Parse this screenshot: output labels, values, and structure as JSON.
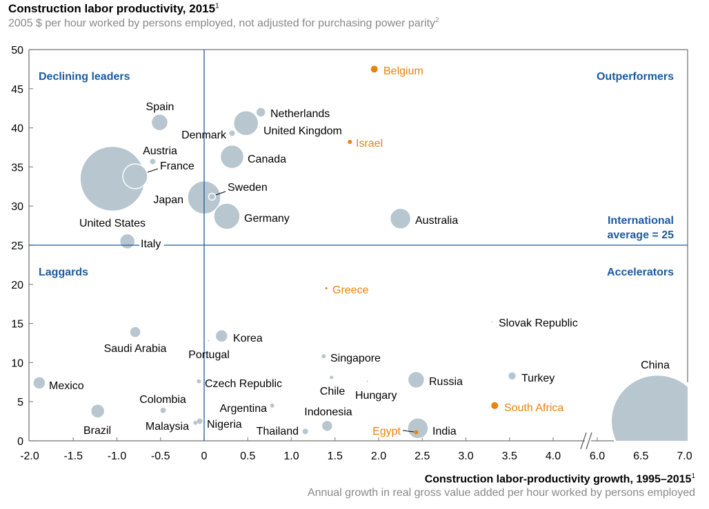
{
  "chart_data": {
    "type": "scatter",
    "title": "Construction labor productivity, 2015",
    "title_sup": "1",
    "subtitle": "2005 $ per hour worked by persons employed, not adjusted for purchasing power parity",
    "subtitle_sup": "2",
    "xlabel": "Construction labor-productivity growth, 1995–2015",
    "xlabel_sup": "1",
    "xsublabel": "Annual growth in real gross value added per hour worked by persons employed",
    "xlim": [
      -2.0,
      7.0
    ],
    "x_axis_break": [
      4.0,
      6.0
    ],
    "ylim": [
      0,
      50
    ],
    "xticks": [
      "-2.0",
      "-1.5",
      "-1.0",
      "-0.5",
      "0",
      "0.5",
      "1.0",
      "1.5",
      "2.0",
      "2.5",
      "3.0",
      "3.5",
      "4.0",
      "6.0",
      "6.5",
      "7.0"
    ],
    "yticks": [
      "0",
      "5",
      "10",
      "15",
      "20",
      "25",
      "30",
      "35",
      "40",
      "45",
      "50"
    ],
    "reference_lines": {
      "x": 0,
      "y": 25
    },
    "quadrants": {
      "top_left": "Declining leaders",
      "top_right": "Outperformers",
      "bottom_left": "Laggards",
      "bottom_right": "Accelerators",
      "average_line1": "International",
      "average_line2": "average = 25"
    },
    "colors": {
      "bubble": "#b7c6cf",
      "highlight": "#e8820c",
      "accent": "#1b5a9e",
      "axis": "#888888"
    },
    "points": [
      {
        "name": "United States",
        "x": -1.05,
        "y": 33.5,
        "size": 47,
        "highlight": false
      },
      {
        "name": "France",
        "x": -0.79,
        "y": 33.8,
        "size": 18,
        "highlight": false
      },
      {
        "name": "Austria",
        "x": -0.59,
        "y": 35.7,
        "size": 4,
        "highlight": false
      },
      {
        "name": "Spain",
        "x": -0.51,
        "y": 40.7,
        "size": 12,
        "highlight": false
      },
      {
        "name": "Japan",
        "x": 0.0,
        "y": 31.1,
        "size": 24,
        "highlight": false
      },
      {
        "name": "Sweden",
        "x": 0.09,
        "y": 31.2,
        "size": 5,
        "highlight": false
      },
      {
        "name": "Germany",
        "x": 0.26,
        "y": 28.7,
        "size": 19,
        "highlight": false
      },
      {
        "name": "Canada",
        "x": 0.32,
        "y": 36.3,
        "size": 17,
        "highlight": false
      },
      {
        "name": "United Kingdom",
        "x": 0.48,
        "y": 40.6,
        "size": 18,
        "highlight": false
      },
      {
        "name": "Netherlands",
        "x": 0.65,
        "y": 42.0,
        "size": 7,
        "highlight": false
      },
      {
        "name": "Denmark",
        "x": 0.32,
        "y": 39.3,
        "size": 4,
        "highlight": false
      },
      {
        "name": "Belgium",
        "x": 1.95,
        "y": 47.5,
        "size": 5,
        "highlight": true
      },
      {
        "name": "Israel",
        "x": 1.67,
        "y": 38.2,
        "size": 3,
        "highlight": true
      },
      {
        "name": "Australia",
        "x": 2.25,
        "y": 28.4,
        "size": 15,
        "highlight": false
      },
      {
        "name": "Italy",
        "x": -0.88,
        "y": 25.5,
        "size": 11,
        "highlight": false
      },
      {
        "name": "Greece",
        "x": 1.4,
        "y": 19.5,
        "size": 1.5,
        "highlight": true
      },
      {
        "name": "Slovak Republic",
        "x": 3.3,
        "y": 15.2,
        "size": 1,
        "highlight": false
      },
      {
        "name": "Saudi Arabia",
        "x": -0.79,
        "y": 13.9,
        "size": 8,
        "highlight": false
      },
      {
        "name": "Korea",
        "x": 0.2,
        "y": 13.4,
        "size": 9,
        "highlight": false
      },
      {
        "name": "Portugal",
        "x": 0.05,
        "y": 12.8,
        "size": 1,
        "highlight": false
      },
      {
        "name": "Singapore",
        "x": 1.37,
        "y": 10.8,
        "size": 3,
        "highlight": false
      },
      {
        "name": "Chile",
        "x": 1.46,
        "y": 8.1,
        "size": 2.5,
        "highlight": false
      },
      {
        "name": "Hungary",
        "x": 1.87,
        "y": 7.6,
        "size": 1,
        "highlight": false
      },
      {
        "name": "Russia",
        "x": 2.43,
        "y": 7.8,
        "size": 12,
        "highlight": false
      },
      {
        "name": "Turkey",
        "x": 3.53,
        "y": 8.3,
        "size": 6,
        "highlight": false
      },
      {
        "name": "Mexico",
        "x": -1.89,
        "y": 7.4,
        "size": 9,
        "highlight": false
      },
      {
        "name": "Czech Republic",
        "x": -0.06,
        "y": 7.6,
        "size": 3,
        "highlight": false
      },
      {
        "name": "Colombia",
        "x": -0.47,
        "y": 3.9,
        "size": 4,
        "highlight": false
      },
      {
        "name": "Argentina",
        "x": 0.78,
        "y": 4.5,
        "size": 3,
        "highlight": false
      },
      {
        "name": "South Africa",
        "x": 3.33,
        "y": 4.5,
        "size": 5,
        "highlight": true
      },
      {
        "name": "Brazil",
        "x": -1.22,
        "y": 3.8,
        "size": 10,
        "highlight": false
      },
      {
        "name": "Malaysia",
        "x": -0.1,
        "y": 2.3,
        "size": 3,
        "highlight": false
      },
      {
        "name": "Nigeria",
        "x": -0.05,
        "y": 2.5,
        "size": 4,
        "highlight": false
      },
      {
        "name": "Thailand",
        "x": 1.16,
        "y": 1.2,
        "size": 4,
        "highlight": false
      },
      {
        "name": "Indonesia",
        "x": 1.41,
        "y": 1.9,
        "size": 8,
        "highlight": false
      },
      {
        "name": "India",
        "x": 2.45,
        "y": 1.6,
        "size": 15,
        "highlight": false
      },
      {
        "name": "Egypt",
        "x": 2.43,
        "y": 1.1,
        "size": 3,
        "highlight": true
      },
      {
        "name": "China",
        "x": 6.69,
        "y": 2.5,
        "size": 67,
        "highlight": false
      }
    ]
  }
}
